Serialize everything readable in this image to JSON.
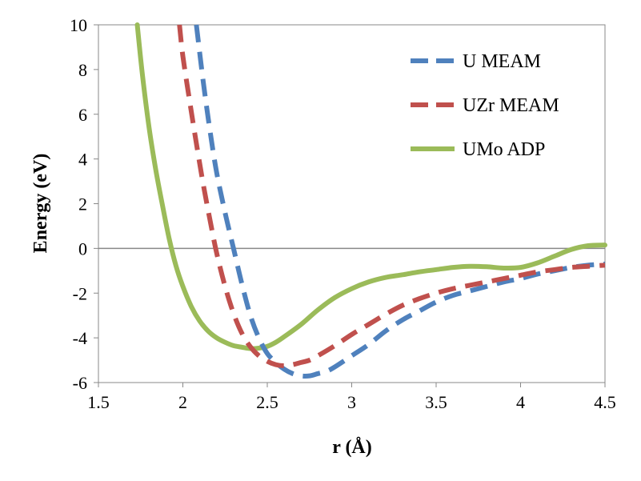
{
  "chart_data": {
    "type": "line",
    "title": "",
    "xlabel": "r (Å)",
    "ylabel": "Energy (eV)",
    "xlim": [
      1.5,
      4.5
    ],
    "ylim": [
      -6,
      10
    ],
    "x_ticks": [
      "1.5",
      "2",
      "2.5",
      "3",
      "3.5",
      "4",
      "4.5"
    ],
    "y_ticks": [
      "-6",
      "-4",
      "-2",
      "0",
      "2",
      "4",
      "6",
      "8",
      "10"
    ],
    "zero_line": true,
    "grid": false,
    "legend_position": "top-right",
    "series": [
      {
        "name": "U MEAM",
        "color": "#4F81BD",
        "style": "dashed",
        "x": [
          2.08,
          2.12,
          2.16,
          2.2,
          2.25,
          2.3,
          2.35,
          2.4,
          2.45,
          2.5,
          2.55,
          2.6,
          2.65,
          2.7,
          2.75,
          2.8,
          2.85,
          2.9,
          3.0,
          3.1,
          3.2,
          3.3,
          3.4,
          3.5,
          3.6,
          3.7,
          3.8,
          3.9,
          4.0,
          4.1,
          4.2,
          4.3,
          4.4,
          4.5
        ],
        "y": [
          10.0,
          7.5,
          5.3,
          3.4,
          1.6,
          0.0,
          -1.6,
          -3.0,
          -4.0,
          -4.7,
          -5.1,
          -5.4,
          -5.6,
          -5.7,
          -5.7,
          -5.6,
          -5.5,
          -5.3,
          -4.8,
          -4.3,
          -3.7,
          -3.2,
          -2.8,
          -2.4,
          -2.1,
          -1.9,
          -1.7,
          -1.5,
          -1.35,
          -1.15,
          -1.0,
          -0.85,
          -0.75,
          -0.7
        ]
      },
      {
        "name": "UZr MEAM",
        "color": "#C0504D",
        "style": "dashed",
        "x": [
          1.98,
          2.0,
          2.04,
          2.08,
          2.12,
          2.16,
          2.2,
          2.25,
          2.3,
          2.35,
          2.4,
          2.45,
          2.5,
          2.55,
          2.6,
          2.65,
          2.7,
          2.75,
          2.8,
          2.9,
          3.0,
          3.1,
          3.2,
          3.3,
          3.4,
          3.5,
          3.6,
          3.7,
          3.8,
          3.9,
          4.0,
          4.1,
          4.2,
          4.3,
          4.4,
          4.5
        ],
        "y": [
          10.0,
          8.6,
          6.6,
          4.7,
          2.9,
          1.3,
          -0.2,
          -1.7,
          -2.9,
          -3.8,
          -4.4,
          -4.8,
          -5.05,
          -5.2,
          -5.25,
          -5.2,
          -5.1,
          -5.0,
          -4.8,
          -4.35,
          -3.85,
          -3.4,
          -2.95,
          -2.55,
          -2.25,
          -2.0,
          -1.8,
          -1.65,
          -1.5,
          -1.35,
          -1.2,
          -1.05,
          -0.95,
          -0.85,
          -0.8,
          -0.75
        ]
      },
      {
        "name": "UMo ADP",
        "color": "#9BBB59",
        "style": "solid",
        "x": [
          1.73,
          1.76,
          1.8,
          1.84,
          1.88,
          1.92,
          1.96,
          2.0,
          2.05,
          2.1,
          2.15,
          2.2,
          2.25,
          2.3,
          2.35,
          2.4,
          2.45,
          2.5,
          2.55,
          2.6,
          2.7,
          2.8,
          2.9,
          3.0,
          3.1,
          3.2,
          3.3,
          3.4,
          3.5,
          3.6,
          3.7,
          3.8,
          3.9,
          4.0,
          4.1,
          4.2,
          4.3,
          4.4,
          4.5
        ],
        "y": [
          10.0,
          7.8,
          5.4,
          3.5,
          1.9,
          0.4,
          -0.8,
          -1.7,
          -2.6,
          -3.25,
          -3.7,
          -4.0,
          -4.2,
          -4.35,
          -4.42,
          -4.48,
          -4.46,
          -4.38,
          -4.2,
          -3.95,
          -3.4,
          -2.75,
          -2.2,
          -1.8,
          -1.5,
          -1.3,
          -1.18,
          -1.05,
          -0.95,
          -0.85,
          -0.8,
          -0.82,
          -0.88,
          -0.85,
          -0.65,
          -0.35,
          -0.05,
          0.12,
          0.15
        ]
      }
    ]
  }
}
